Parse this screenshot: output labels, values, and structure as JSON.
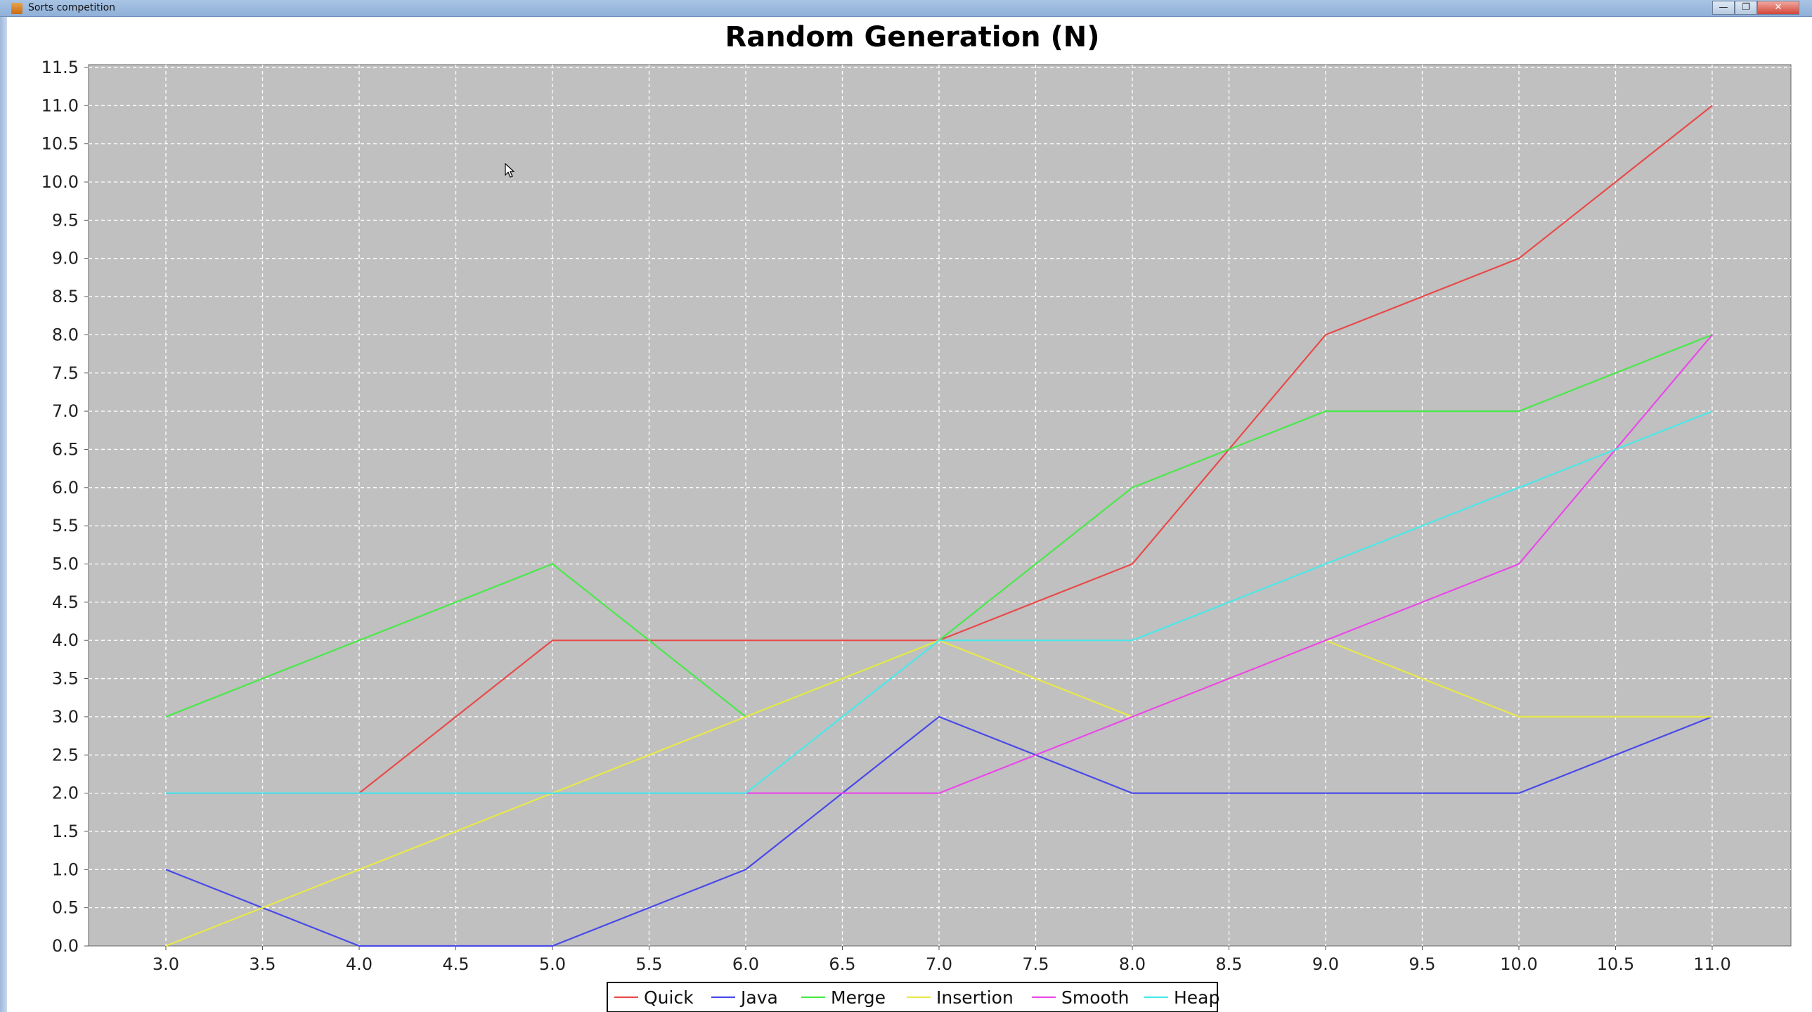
{
  "window": {
    "title": "Sorts competition",
    "buttons": {
      "minimize": "—",
      "maximize": "❐",
      "close": "✕"
    }
  },
  "chart_data": {
    "type": "line",
    "title": "Random Generation (N)",
    "xlabel": "",
    "ylabel": "",
    "xlim": [
      2.6,
      11.4
    ],
    "ylim": [
      0,
      11.6
    ],
    "x_ticks": [
      "3.0",
      "3.5",
      "4.0",
      "4.5",
      "5.0",
      "5.5",
      "6.0",
      "6.5",
      "7.0",
      "7.5",
      "8.0",
      "8.5",
      "9.0",
      "9.5",
      "10.0",
      "10.5",
      "11.0"
    ],
    "y_ticks": [
      "0.0",
      "0.5",
      "1.0",
      "1.5",
      "2.0",
      "2.5",
      "3.0",
      "3.5",
      "4.0",
      "4.5",
      "5.0",
      "5.5",
      "6.0",
      "6.5",
      "7.0",
      "7.5",
      "8.0",
      "8.5",
      "9.0",
      "9.5",
      "10.0",
      "10.5",
      "11.0",
      "11.5"
    ],
    "grid": true,
    "legend_position": "bottom",
    "x": [
      3,
      4,
      5,
      6,
      7,
      8,
      9,
      10,
      11
    ],
    "series": [
      {
        "name": "Quick",
        "color": "#e84a4a",
        "values": [
          2,
          2,
          4,
          4,
          4,
          5,
          8,
          9,
          11
        ]
      },
      {
        "name": "Java",
        "color": "#4a4ae8",
        "values": [
          1,
          0,
          0,
          1,
          3,
          2,
          2,
          2,
          3
        ]
      },
      {
        "name": "Merge",
        "color": "#4ae84a",
        "values": [
          3,
          4,
          5,
          3,
          4,
          6,
          7,
          7,
          8
        ]
      },
      {
        "name": "Insertion",
        "color": "#e8e84a",
        "values": [
          0,
          1,
          2,
          3,
          4,
          3,
          4,
          3,
          3
        ]
      },
      {
        "name": "Smooth",
        "color": "#e84ae8",
        "values": [
          2,
          2,
          2,
          2,
          2,
          3,
          4,
          5,
          8
        ]
      },
      {
        "name": "Heap",
        "color": "#4ae8e8",
        "values": [
          2,
          2,
          2,
          2,
          4,
          4,
          5,
          6,
          7
        ]
      }
    ],
    "colors": {
      "plot_background": "#c0c0c0",
      "grid": "#ffffff"
    }
  }
}
